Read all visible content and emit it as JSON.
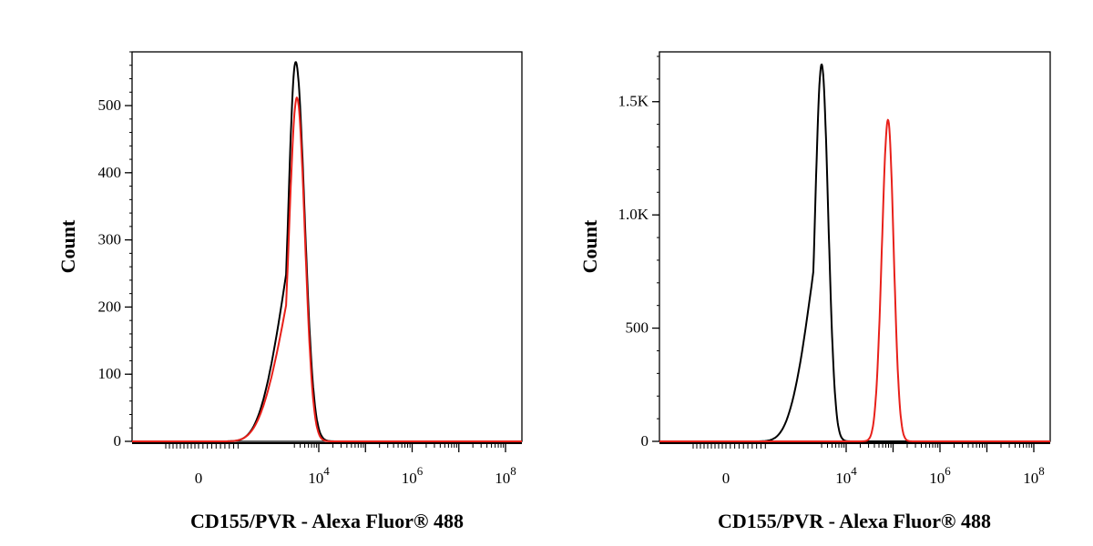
{
  "chart_data": [
    {
      "type": "line",
      "subtype": "flow-cytometry-histogram",
      "title": "",
      "xlabel": "CD155/PVR - Alexa Fluor® 488",
      "ylabel": "Count",
      "x_scale": "biexponential",
      "xlim": [
        -1000,
        100000000
      ],
      "ylim": [
        0,
        580
      ],
      "x_ticks": [
        {
          "value": 0,
          "base": "0",
          "exp": ""
        },
        {
          "value": 10000,
          "base": "10",
          "exp": "4"
        },
        {
          "value": 1000000,
          "base": "10",
          "exp": "6"
        },
        {
          "value": 100000000,
          "base": "10",
          "exp": "8"
        }
      ],
      "y_ticks": [
        {
          "value": 0,
          "label": "0"
        },
        {
          "value": 100,
          "label": "100"
        },
        {
          "value": 200,
          "label": "200"
        },
        {
          "value": 300,
          "label": "300"
        },
        {
          "value": 400,
          "label": "400"
        },
        {
          "value": 500,
          "label": "500"
        }
      ],
      "grid": false,
      "legend": "none",
      "series": [
        {
          "color": "#000000",
          "peak_x": 3200,
          "peak_count": 565,
          "left_width": 0.16,
          "right_width": 0.19
        },
        {
          "color": "#e8201a",
          "peak_x": 3400,
          "peak_count": 512,
          "left_width": 0.17,
          "right_width": 0.17
        }
      ]
    },
    {
      "type": "line",
      "subtype": "flow-cytometry-histogram",
      "title": "",
      "xlabel": "CD155/PVR - Alexa Fluor® 488",
      "ylabel": "Count",
      "x_scale": "biexponential",
      "xlim": [
        -1000,
        100000000
      ],
      "ylim": [
        0,
        1720
      ],
      "x_ticks": [
        {
          "value": 0,
          "base": "0",
          "exp": ""
        },
        {
          "value": 10000,
          "base": "10",
          "exp": "4"
        },
        {
          "value": 1000000,
          "base": "10",
          "exp": "6"
        },
        {
          "value": 100000000,
          "base": "10",
          "exp": "8"
        }
      ],
      "y_ticks": [
        {
          "value": 0,
          "label": "0"
        },
        {
          "value": 500,
          "label": "500"
        },
        {
          "value": 1000,
          "label": "1.0K"
        },
        {
          "value": 1500,
          "label": "1.5K"
        }
      ],
      "grid": false,
      "legend": "none",
      "series": [
        {
          "color": "#000000",
          "peak_x": 3000,
          "peak_count": 1665,
          "left_width": 0.14,
          "right_width": 0.14
        },
        {
          "color": "#e8201a",
          "peak_x": 78000,
          "peak_count": 1420,
          "left_width": 0.13,
          "right_width": 0.12
        }
      ]
    }
  ]
}
